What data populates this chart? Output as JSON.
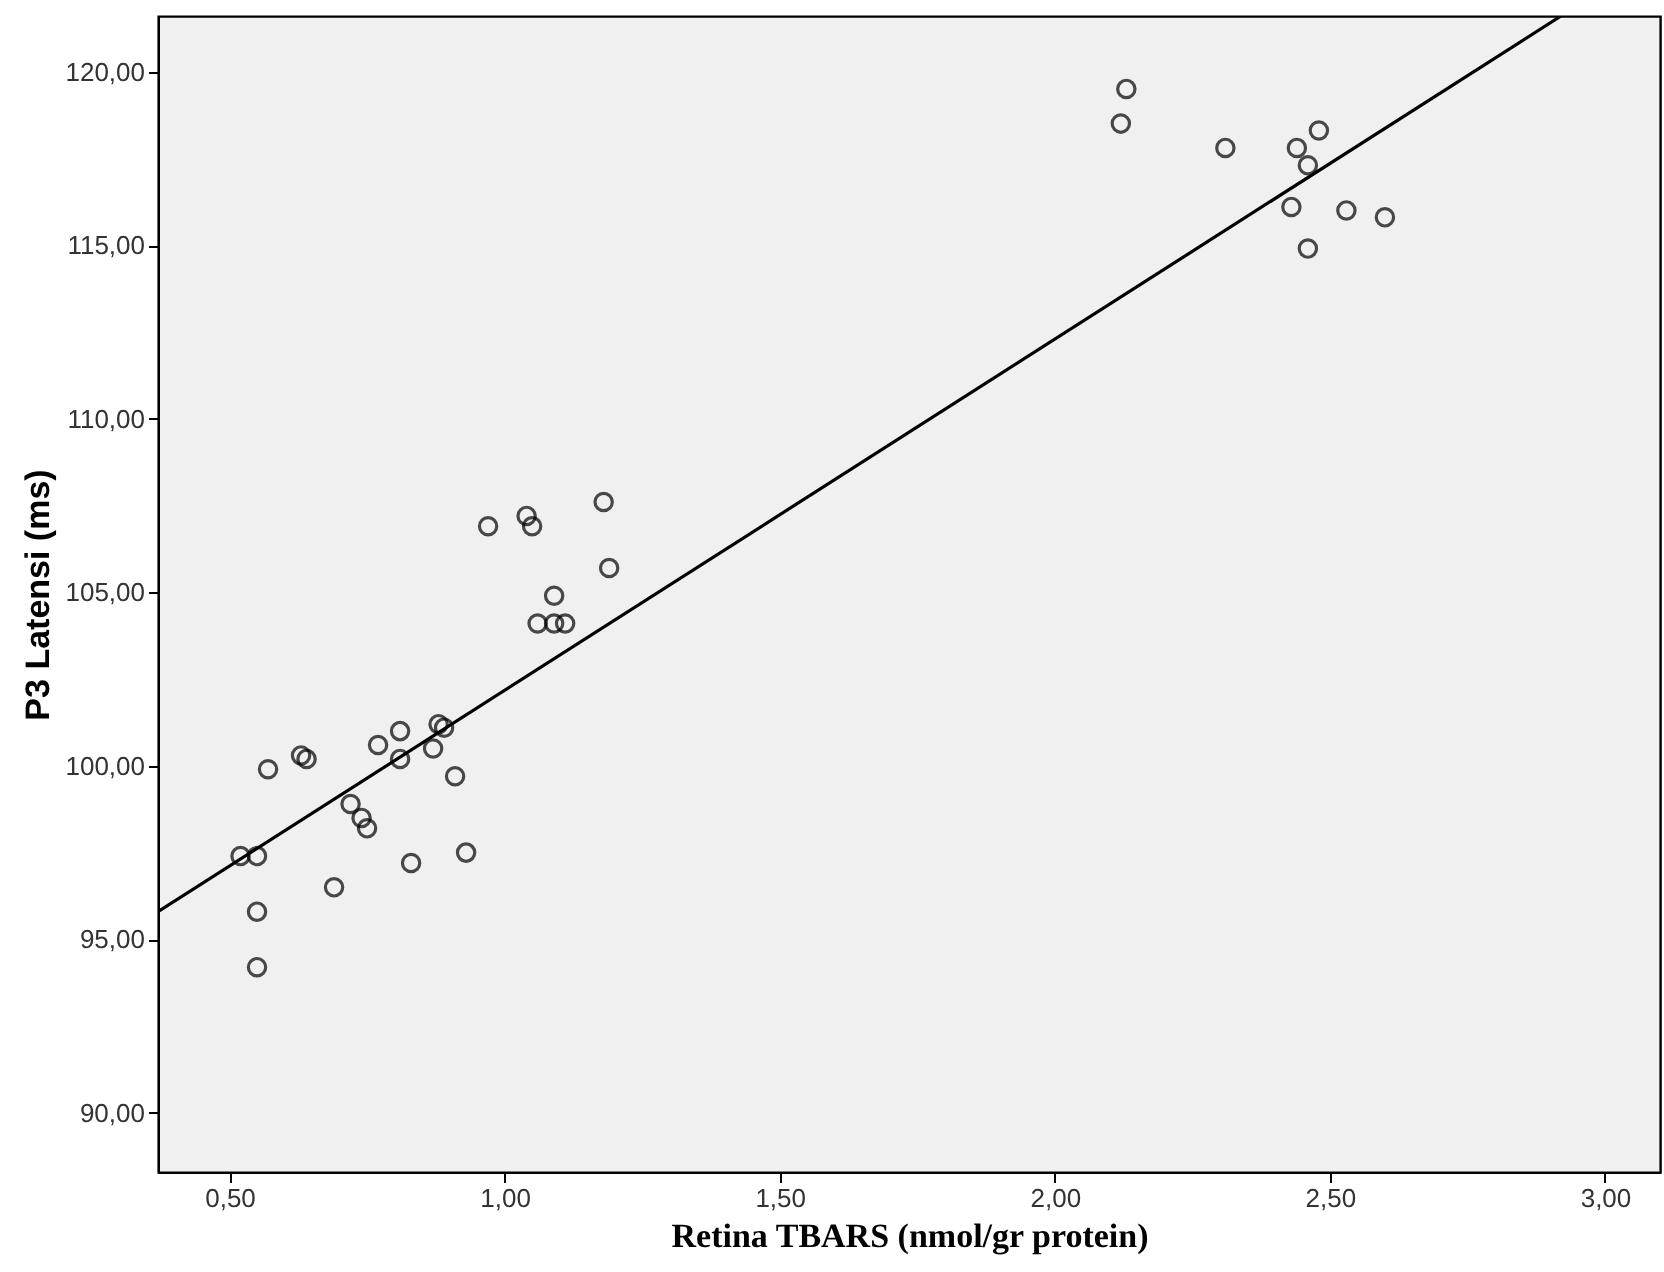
{
  "chart_data": {
    "type": "scatter",
    "xlabel": "Retina TBARS (nmol/gr protein)",
    "ylabel": "P3 Latensi (ms)",
    "xlim": [
      0.37,
      3.1
    ],
    "ylim": [
      88.3,
      121.6
    ],
    "xticks": [
      {
        "value": 0.5,
        "label": "0,50"
      },
      {
        "value": 1.0,
        "label": "1,00"
      },
      {
        "value": 1.5,
        "label": "1,50"
      },
      {
        "value": 2.0,
        "label": "2,00"
      },
      {
        "value": 2.5,
        "label": "2,50"
      },
      {
        "value": 3.0,
        "label": "3,00"
      }
    ],
    "yticks": [
      {
        "value": 90,
        "label": "90,00"
      },
      {
        "value": 95,
        "label": "95,00"
      },
      {
        "value": 100,
        "label": "100,00"
      },
      {
        "value": 105,
        "label": "105,00"
      },
      {
        "value": 110,
        "label": "110,00"
      },
      {
        "value": 115,
        "label": "115,00"
      },
      {
        "value": 120,
        "label": "120,00"
      }
    ],
    "grid": false,
    "series": [
      {
        "marker": "circle",
        "color": "#000000",
        "x": [
          2.13,
          2.12,
          2.31,
          2.48,
          2.44,
          2.46,
          2.43,
          2.53,
          2.6,
          2.46,
          0.97,
          1.04,
          1.05,
          1.18,
          1.19,
          1.09,
          1.06,
          1.09,
          1.11,
          0.81,
          0.77,
          0.81,
          0.88,
          0.89,
          0.87,
          0.91,
          0.57,
          0.63,
          0.64,
          0.72,
          0.74,
          0.75,
          0.52,
          0.55,
          0.83,
          0.93,
          0.69,
          0.55,
          0.55
        ],
        "values": [
          119.5,
          118.5,
          117.8,
          118.3,
          117.8,
          117.3,
          116.1,
          116.0,
          115.8,
          114.9,
          106.9,
          107.2,
          106.9,
          107.6,
          105.7,
          104.9,
          104.1,
          104.1,
          104.1,
          101.0,
          100.6,
          100.2,
          101.2,
          101.1,
          100.5,
          99.7,
          99.9,
          100.3,
          100.2,
          98.9,
          98.5,
          98.2,
          97.4,
          97.4,
          97.2,
          97.5,
          96.5,
          95.8,
          94.2
        ]
      },
      {
        "type": "line",
        "color": "#000000",
        "line_style": "solid",
        "x": [
          0.37,
          2.92
        ],
        "values": [
          95.8,
          121.6
        ]
      }
    ]
  }
}
